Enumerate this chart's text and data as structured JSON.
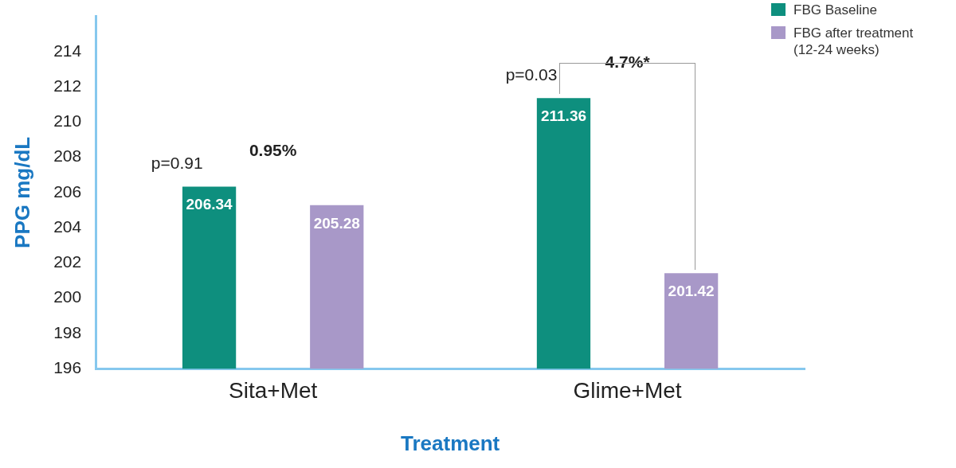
{
  "chart_data": {
    "type": "bar",
    "xlabel": "Treatment",
    "ylabel": "PPG mg/dL",
    "categories": [
      "Sita+Met",
      "Glime+Met"
    ],
    "series": [
      {
        "name": "FBG Baseline",
        "color": "#0e8f7e",
        "values": [
          206.34,
          211.36
        ]
      },
      {
        "name": "FBG after treatment (12-24 weeks)",
        "color": "#a898c8",
        "values": [
          205.28,
          201.42
        ]
      }
    ],
    "ylim": [
      196,
      216
    ],
    "yticks": [
      196,
      198,
      200,
      202,
      204,
      206,
      208,
      210,
      212,
      214
    ],
    "grid": false,
    "legend": "top right",
    "data_labels": true,
    "annotations": [
      "p=0.91",
      "0.95%",
      "p=0.03",
      "4.7%*"
    ]
  }
}
